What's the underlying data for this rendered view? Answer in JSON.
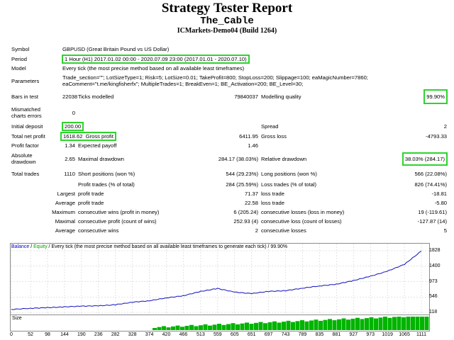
{
  "header": {
    "title": "Strategy Tester Report",
    "ea_name": "The_Cable",
    "account": "ICMarkets-Demo04 (Build 1264)"
  },
  "rows": {
    "symbol": {
      "label": "Symbol",
      "value": "GBPUSD (Great Britain Pound vs US Dollar)"
    },
    "period": {
      "label": "Period",
      "value": "1 Hour (H1) 2017.01.02 00:00 - 2020.07.09 23:00 (2017.01.01 - 2020.07.10)"
    },
    "model": {
      "label": "Model",
      "value": "Every tick (the most precise method based on all available least timeframes)"
    },
    "parameters": {
      "label": "Parameters",
      "line1": "Trade_section=\"\"; LotSizeType=1; Risk=5; LotSize=0.01; TakeProfit=800; StopLoss=200; Slippage=100; eaMagicNumber=7860;",
      "line2": "eaComment=\"t.me/kingfisherfx\"; MultipleTrades=1; BreakEven=1; BE_Activation=200; BE_Level=30;"
    },
    "bars": {
      "label": "Bars in test",
      "value": "22038",
      "ticks_label": "Ticks modelled",
      "ticks_value": "79840037",
      "quality_label": "Modelling quality",
      "quality_value": "99.90%"
    },
    "mismatched": {
      "label1": "Mismatched",
      "label2": "charts errors",
      "value": "0"
    },
    "initial_deposit": {
      "label": "Initial deposit",
      "value": "200.00",
      "spread_label": "Spread",
      "spread_value": "2"
    },
    "net_profit": {
      "label": "Total net profit",
      "value": "1618.62",
      "gross_profit_label": "Gross profit",
      "gross_profit_value": "6411.95",
      "gross_loss_label": "Gross loss",
      "gross_loss_value": "-4793.33"
    },
    "profit_factor": {
      "label": "Profit factor",
      "value": "1.34",
      "payoff_label": "Expected payoff",
      "payoff_value": "1.46"
    },
    "drawdown": {
      "label1": "Absolute",
      "label2": "drawdown",
      "value": "2.65",
      "max_label": "Maximal drawdown",
      "max_value": "284.17 (38.03%)",
      "rel_label": "Relative drawdown",
      "rel_value": "38.03% (284.17)"
    },
    "total_trades": {
      "label": "Total trades",
      "value": "1110",
      "short_label": "Short positions (won %)",
      "short_value": "544 (29.23%)",
      "long_label": "Long positions (won %)",
      "long_value": "566 (22.08%)"
    },
    "profit_trades": {
      "label": "Profit trades (% of total)",
      "value": "284 (25.59%)",
      "loss_label": "Loss trades (% of total)",
      "loss_value": "826 (74.41%)"
    },
    "largest": {
      "label": "Largest",
      "sub": "profit trade",
      "value": "71.37",
      "loss_sub": "loss trade",
      "loss_value": "-18.81"
    },
    "average": {
      "label": "Average",
      "sub": "profit trade",
      "value": "22.58",
      "loss_sub": "loss trade",
      "loss_value": "-5.80"
    },
    "maximum": {
      "label": "Maximum",
      "sub": "consecutive wins (profit in money)",
      "value": "6 (205.24)",
      "loss_sub": "consecutive losses (loss in money)",
      "loss_value": "19 (-119.61)"
    },
    "maximal": {
      "label": "Maximal",
      "sub": "consecutive profit (count of wins)",
      "value": "252.93 (4)",
      "loss_sub": "consecutive loss (count of losses)",
      "loss_value": "-127.87 (14)"
    },
    "average_consec": {
      "label": "Average",
      "sub": "consecutive wins",
      "value": "2",
      "loss_sub": "consecutive losses",
      "loss_value": "5"
    }
  },
  "chart": {
    "legend_balance": "Balance",
    "legend_sep": " / ",
    "legend_equity": "Equity",
    "legend_rest": " / Every tick (the most precise method based on all available least timeframes to generate each tick) / 99.90%",
    "size_label": "Size",
    "colors": {
      "balance": "#1010c0",
      "equity": "#00a000",
      "size_bars": "#00b400"
    }
  },
  "chart_data": {
    "type": "line",
    "series": [
      {
        "name": "Balance",
        "x": [
          0,
          52,
          98,
          144,
          190,
          236,
          282,
          328,
          374,
          420,
          466,
          513,
          559,
          605,
          651,
          697,
          743,
          789,
          835,
          881,
          927,
          973,
          1019,
          1065,
          1111
        ],
        "values": [
          200,
          230,
          250,
          270,
          290,
          300,
          330,
          400,
          440,
          520,
          580,
          700,
          780,
          680,
          640,
          700,
          720,
          790,
          850,
          900,
          1000,
          1120,
          1260,
          1450,
          1818
        ]
      }
    ],
    "xticks": [
      "0",
      "52",
      "98",
      "144",
      "190",
      "236",
      "282",
      "328",
      "374",
      "420",
      "466",
      "513",
      "559",
      "605",
      "651",
      "697",
      "743",
      "789",
      "835",
      "881",
      "927",
      "973",
      "1019",
      "1065",
      "1111"
    ],
    "yticks": [
      "1828",
      "1400",
      "973",
      "546",
      "118"
    ],
    "ylim": [
      118,
      1828
    ],
    "grid": true
  }
}
